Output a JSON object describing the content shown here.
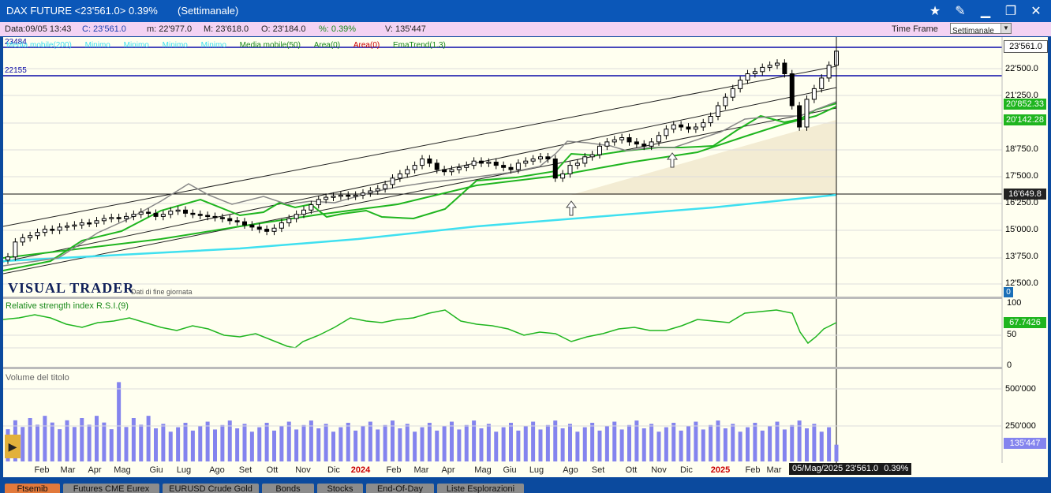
{
  "title": {
    "instrument": "DAX FUTURE <23'561.0> 0.39%",
    "period": "(Settimanale)"
  },
  "window_controls": [
    "star-icon",
    "pin-icon",
    "minimize-icon",
    "restore-icon",
    "close-icon"
  ],
  "info": {
    "data": "Data:09/05 13:43",
    "close": "C: 23'561.0",
    "min": "m: 22'977.0",
    "max": "M: 23'618.0",
    "open": "O: 23'184.0",
    "pct": "%: 0.39%",
    "vol": "V: 135'447",
    "time_frame_label": "Time Frame",
    "time_frame_value": "Settimanale"
  },
  "indicators": {
    "line1": "Media mobile(200)",
    "ma_items": [
      "Minimo",
      "Minimo",
      "Minimo",
      "Minimo"
    ],
    "ma50": "Media mobile(50)",
    "area0_green": "Area(0)",
    "area0_red": "Area(0)",
    "ematrend": "EmaTrend(1.3)"
  },
  "price_levels": {
    "upper": "23484",
    "lower": "22155"
  },
  "price_axis": [
    "22'500.0",
    "21'250.0",
    "18'750.0",
    "17'500.0",
    "16'250.0",
    "15'000.0",
    "13'750.0",
    "12'500.0"
  ],
  "price_badges": {
    "last": "23'561.0",
    "ma_green": "20'852.33",
    "ma_green2": "20'142.28",
    "level": "16'649.8",
    "zero": "0"
  },
  "branding": {
    "logo": "VISUAL TRADER",
    "sub": "Dati di fine giornata"
  },
  "rsi": {
    "label": "Relative strength index R.S.I.(9)",
    "axis": [
      "100",
      "50",
      "0"
    ],
    "value": "67.7426"
  },
  "volume": {
    "label": "Volume del titolo",
    "axis": [
      "500'000",
      "250'000"
    ],
    "value": "135'447"
  },
  "x_axis": [
    "Feb",
    "Mar",
    "Apr",
    "Mag",
    "Giu",
    "Lug",
    "Ago",
    "Set",
    "Ott",
    "Nov",
    "Dic",
    "2024",
    "Feb",
    "Mar",
    "Apr",
    "Mag",
    "Giu",
    "Lug",
    "Ago",
    "Set",
    "Ott",
    "Nov",
    "Dic",
    "2025",
    "Feb",
    "Mar"
  ],
  "cursor_label": {
    "date": "05/Mag/2025",
    "price": "23'561.0",
    "pct": "0.39%"
  },
  "tabs": [
    "Ftsemib",
    "Futures CME Eurex",
    "EURUSD Crude Gold",
    "Bonds",
    "Stocks",
    "End-Of-Day",
    "Liste Esplorazioni"
  ],
  "colors": {
    "background": "#fffff0",
    "candle": "#000000",
    "ma50": "#1fb51f",
    "ma200": "#3fe0f0",
    "rsi": "#1fb51f",
    "volume": "#8484ee",
    "area": "#f3ecd3"
  },
  "chart_data": {
    "type": "candlestick",
    "timeframe": "weekly",
    "close_series": [
      13900,
      14600,
      14800,
      14900,
      15050,
      15200,
      15150,
      15300,
      15350,
      15400,
      15500,
      15480,
      15600,
      15700,
      15750,
      15700,
      15800,
      15900,
      16000,
      15950,
      15800,
      15900,
      16050,
      16100,
      15950,
      15900,
      15850,
      15800,
      15750,
      15700,
      15600,
      15550,
      15400,
      15300,
      15200,
      15100,
      15250,
      15500,
      15700,
      15900,
      16100,
      16350,
      16600,
      16700,
      16750,
      16800,
      16750,
      16800,
      16900,
      17000,
      17100,
      17300,
      17600,
      17800,
      18000,
      18200,
      18500,
      18300,
      18000,
      17900,
      18000,
      18100,
      18200,
      18400,
      18300,
      18350,
      18200,
      18100,
      18000,
      18300,
      18400,
      18500,
      18600,
      18500,
      17600,
      17800,
      18200,
      18300,
      18600,
      18700,
      19100,
      19300,
      19400,
      19500,
      19300,
      19200,
      19100,
      19300,
      19600,
      19900,
      20100,
      20000,
      19900,
      20000,
      20200,
      20500,
      21000,
      21400,
      21800,
      22200,
      22500,
      22600,
      22800,
      22900,
      23000,
      22500,
      21000,
      20000,
      21300,
      21800,
      22300,
      22900,
      23561
    ],
    "ma200_last": 16649.8,
    "ma50_last": 20852.33,
    "ema_last": 20142.28,
    "rsi_last": 67.7426,
    "volume_last": 135447,
    "price_ylim": [
      12000,
      24000
    ]
  }
}
